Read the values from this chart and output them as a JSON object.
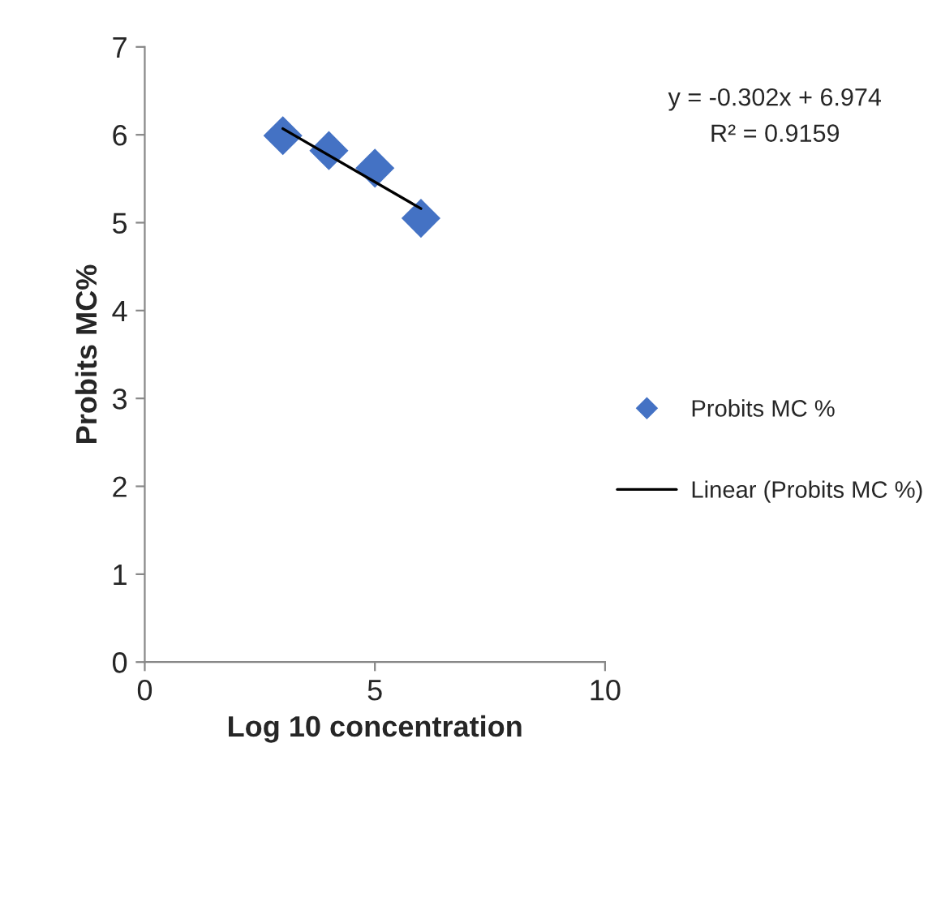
{
  "chart_data": {
    "type": "scatter",
    "xlabel": "Log 10 concentration",
    "ylabel": "Probits MC%",
    "series": [
      {
        "name": "Probits MC %",
        "color": "#4472c4",
        "marker": "diamond",
        "x": [
          3,
          4,
          5,
          6
        ],
        "values": [
          5.99,
          5.82,
          5.62,
          5.05
        ]
      },
      {
        "name": "Linear (Probits MC %)",
        "type": "line",
        "color": "#000000",
        "marker": "none",
        "line_style": "solid",
        "x": [
          3,
          6
        ],
        "values": [
          6.07,
          5.16
        ]
      }
    ],
    "annotations": [
      "y = -0.302x + 6.974",
      "R² = 0.9159"
    ],
    "xlim": [
      0,
      10
    ],
    "xticks": [
      0,
      5,
      10
    ],
    "ylim": [
      0,
      7
    ],
    "yticks": [
      0,
      1,
      2,
      3,
      4,
      5,
      6,
      7
    ],
    "grid": false,
    "legend": "right"
  }
}
